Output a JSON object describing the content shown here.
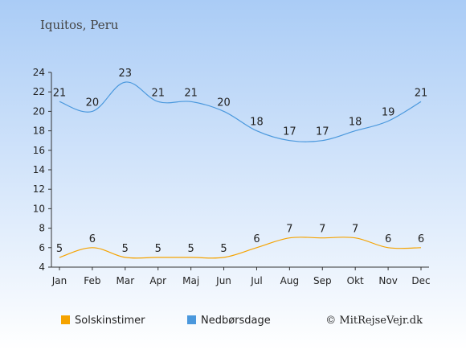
{
  "chart_data": {
    "type": "line",
    "title": "Iquitos, Peru",
    "categories": [
      "Jan",
      "Feb",
      "Mar",
      "Apr",
      "Maj",
      "Jun",
      "Jul",
      "Aug",
      "Sep",
      "Okt",
      "Nov",
      "Dec"
    ],
    "ylim": [
      4,
      24
    ],
    "yticks": [
      4,
      6,
      8,
      10,
      12,
      14,
      16,
      18,
      20,
      22,
      24
    ],
    "grid": false,
    "legend": "bottom",
    "series": [
      {
        "name": "Solskinstimer",
        "color": "#f5a300",
        "values": [
          5,
          6,
          5,
          5,
          5,
          5,
          6,
          7,
          7,
          7,
          6,
          6
        ]
      },
      {
        "name": "Nedbørsdage",
        "color": "#4a98dd",
        "values": [
          21,
          20,
          23,
          21,
          21,
          20,
          18,
          17,
          17,
          18,
          19,
          21
        ]
      }
    ],
    "credit": "© MitRejseVejr.dk"
  },
  "colors": {
    "background_top": "#aaccf6",
    "background_bottom": "#ffffff"
  }
}
